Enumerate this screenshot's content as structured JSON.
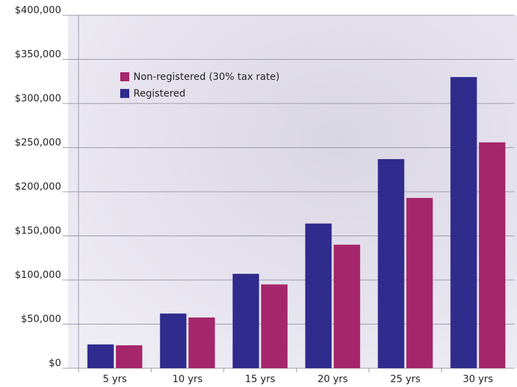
{
  "chart_data": {
    "type": "bar",
    "categories": [
      "5 yrs",
      "10 yrs",
      "15 yrs",
      "20 yrs",
      "25 yrs",
      "30 yrs"
    ],
    "series": [
      {
        "name": "Registered",
        "color": "#2f2c8e",
        "values": [
          27000,
          62000,
          107000,
          164000,
          237000,
          330000
        ]
      },
      {
        "name": "Non-registered (30% tax rate)",
        "color": "#a5266b",
        "values": [
          26000,
          57500,
          95000,
          140000,
          193000,
          256000
        ]
      }
    ],
    "ylim": [
      0,
      400000
    ],
    "yticks": [
      {
        "value": 0,
        "label": "$0"
      },
      {
        "value": 50000,
        "label": "$50,000"
      },
      {
        "value": 100000,
        "label": "$100,000"
      },
      {
        "value": 150000,
        "label": "$150,000"
      },
      {
        "value": 200000,
        "label": "$200,000"
      },
      {
        "value": 250000,
        "label": "$250,000"
      },
      {
        "value": 300000,
        "label": "$300,000"
      },
      {
        "value": 350000,
        "label": "$350,000"
      },
      {
        "value": 400000,
        "label": "$400,000"
      }
    ],
    "grid": true
  }
}
